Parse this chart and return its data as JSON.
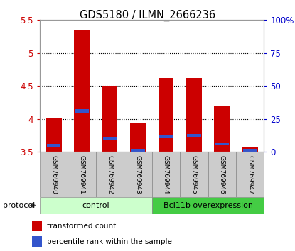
{
  "title": "GDS5180 / ILMN_2666236",
  "samples": [
    "GSM769940",
    "GSM769941",
    "GSM769942",
    "GSM769943",
    "GSM769944",
    "GSM769945",
    "GSM769946",
    "GSM769947"
  ],
  "red_values": [
    4.02,
    5.35,
    4.5,
    3.93,
    4.62,
    4.62,
    4.2,
    3.57
  ],
  "blue_values": [
    3.6,
    4.12,
    3.7,
    3.52,
    3.73,
    3.75,
    3.62,
    3.52
  ],
  "ymin": 3.5,
  "ymax": 5.5,
  "yticks": [
    3.5,
    4.0,
    4.5,
    5.0,
    5.5
  ],
  "right_yticks": [
    0,
    25,
    50,
    75,
    100
  ],
  "right_ylabels": [
    "0",
    "25",
    "50",
    "75",
    "100%"
  ],
  "bar_color": "#cc0000",
  "blue_color": "#3355cc",
  "bar_width": 0.55,
  "control_label": "control",
  "overexp_label": "Bcl11b overexpression",
  "protocol_label": "protocol",
  "legend_red": "transformed count",
  "legend_blue": "percentile rank within the sample",
  "control_color": "#ccffcc",
  "overexp_color": "#44cc44",
  "sample_box_color": "#cccccc",
  "ax_label_color_left": "#cc0000",
  "ax_label_color_right": "#0000cc",
  "grid_color": "black",
  "spine_color": "#999999",
  "n_control": 4,
  "n_overexp": 4
}
